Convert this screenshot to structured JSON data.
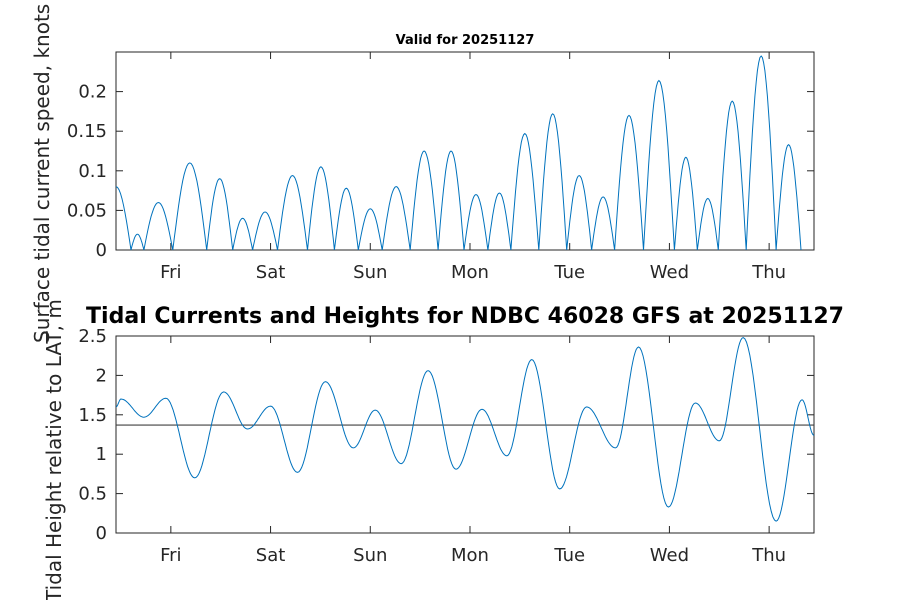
{
  "colors": {
    "line": "#0072bd",
    "axis": "#262626",
    "reference": "#404040",
    "background": "#ffffff"
  },
  "chart_data": [
    {
      "type": "line",
      "title": "Valid for 20251127",
      "ylabel": "Surface tidal current speed, knots",
      "xlabel": "",
      "x_tick_labels": [
        "Fri",
        "Sat",
        "Sun",
        "Mon",
        "Tue",
        "Wed",
        "Thu"
      ],
      "x_tick_positions_days": [
        0.55,
        1.55,
        2.55,
        3.55,
        4.55,
        5.55,
        6.55
      ],
      "xlim_days": [
        0,
        7
      ],
      "ylim": [
        0,
        0.25
      ],
      "y_ticks": [
        0,
        0.05,
        0.1,
        0.15,
        0.2
      ],
      "y_tick_labels": [
        "0",
        "0.05",
        "0.1",
        "0.15",
        "0.2"
      ],
      "grid": false,
      "series": [
        {
          "peaks": [
            [
              0.0,
              0.08
            ],
            [
              0.2,
              0.02
            ],
            [
              0.45,
              0.06
            ],
            [
              0.72,
              0.11
            ],
            [
              1.03,
              0.09
            ],
            [
              1.27,
              0.04
            ],
            [
              1.5,
              0.048
            ],
            [
              1.76,
              0.094
            ],
            [
              2.05,
              0.105
            ],
            [
              2.31,
              0.078
            ],
            [
              2.55,
              0.052
            ],
            [
              2.82,
              0.08
            ],
            [
              3.09,
              0.125
            ],
            [
              3.37,
              0.125
            ],
            [
              3.61,
              0.07
            ],
            [
              3.84,
              0.072
            ],
            [
              4.1,
              0.147
            ],
            [
              4.38,
              0.172
            ],
            [
              4.65,
              0.094
            ],
            [
              4.89,
              0.067
            ],
            [
              5.14,
              0.17
            ],
            [
              5.45,
              0.214
            ],
            [
              5.72,
              0.117
            ],
            [
              5.93,
              0.065
            ],
            [
              6.18,
              0.188
            ],
            [
              6.47,
              0.245
            ],
            [
              6.75,
              0.133
            ],
            [
              7.0,
              0.065
            ]
          ],
          "troughs": [
            0.0,
            0.15,
            0.28,
            0.57,
            0.91,
            1.17,
            1.37,
            1.62,
            1.92,
            2.19,
            2.43,
            2.67,
            2.95,
            3.23,
            3.49,
            3.73,
            3.96,
            4.24,
            4.52,
            4.77,
            5.0,
            5.29,
            5.6,
            5.83,
            6.04,
            6.32,
            6.62,
            6.87,
            7.0
          ]
        }
      ]
    },
    {
      "type": "line",
      "title": "Tidal Currents and Heights for NDBC 46028 GFS at 20251127",
      "ylabel": "Tidal Height relative to LAT, m",
      "xlabel": "",
      "x_tick_labels": [
        "Fri",
        "Sat",
        "Sun",
        "Mon",
        "Tue",
        "Wed",
        "Thu"
      ],
      "x_tick_positions_days": [
        0.55,
        1.55,
        2.55,
        3.55,
        4.55,
        5.55,
        6.55
      ],
      "xlim_days": [
        0,
        7
      ],
      "ylim": [
        0,
        2.5
      ],
      "y_ticks": [
        0,
        0.5,
        1,
        1.5,
        2,
        2.5
      ],
      "y_tick_labels": [
        "0",
        "0.5",
        "1",
        "1.5",
        "2",
        "2.5"
      ],
      "reference_line_y": 1.37,
      "grid": false,
      "series": [
        {
          "extrema": [
            [
              0.0,
              1.6
            ],
            [
              0.05,
              1.7
            ],
            [
              0.28,
              1.47
            ],
            [
              0.5,
              1.71
            ],
            [
              0.79,
              0.7
            ],
            [
              1.08,
              1.79
            ],
            [
              1.32,
              1.32
            ],
            [
              1.55,
              1.61
            ],
            [
              1.82,
              0.77
            ],
            [
              2.1,
              1.92
            ],
            [
              2.38,
              1.08
            ],
            [
              2.6,
              1.56
            ],
            [
              2.86,
              0.88
            ],
            [
              3.13,
              2.06
            ],
            [
              3.41,
              0.81
            ],
            [
              3.67,
              1.57
            ],
            [
              3.92,
              0.98
            ],
            [
              4.17,
              2.2
            ],
            [
              4.45,
              0.56
            ],
            [
              4.72,
              1.6
            ],
            [
              5.01,
              1.08
            ],
            [
              5.24,
              2.36
            ],
            [
              5.54,
              0.33
            ],
            [
              5.81,
              1.65
            ],
            [
              6.05,
              1.17
            ],
            [
              6.29,
              2.48
            ],
            [
              6.62,
              0.15
            ],
            [
              6.88,
              1.69
            ],
            [
              7.0,
              1.24
            ]
          ]
        }
      ]
    }
  ]
}
